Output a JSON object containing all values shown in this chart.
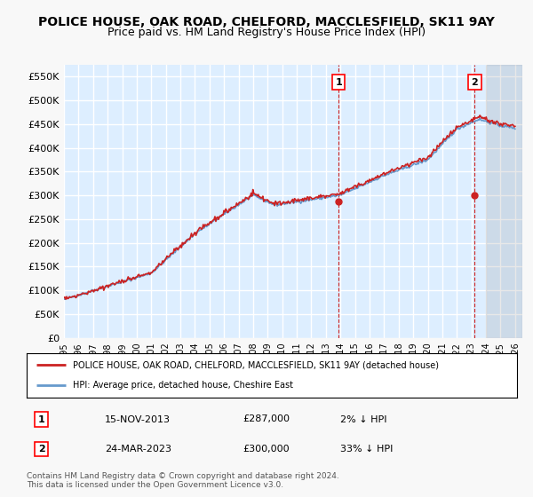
{
  "title": "POLICE HOUSE, OAK ROAD, CHELFORD, MACCLESFIELD, SK11 9AY",
  "subtitle": "Price paid vs. HM Land Registry's House Price Index (HPI)",
  "ylabel_ticks": [
    "£0",
    "£50K",
    "£100K",
    "£150K",
    "£200K",
    "£250K",
    "£300K",
    "£350K",
    "£400K",
    "£450K",
    "£500K",
    "£550K"
  ],
  "ytick_values": [
    0,
    50000,
    100000,
    150000,
    200000,
    250000,
    300000,
    350000,
    400000,
    450000,
    500000,
    550000
  ],
  "ylim": [
    0,
    575000
  ],
  "xlim_start": 1995.5,
  "xlim_end": 2026.5,
  "xtick_labels": [
    "1995",
    "1996",
    "1997",
    "1998",
    "1999",
    "2000",
    "2001",
    "2002",
    "2003",
    "2004",
    "2005",
    "2006",
    "2007",
    "2008",
    "2009",
    "2010",
    "2011",
    "2012",
    "2013",
    "2014",
    "2015",
    "2016",
    "2017",
    "2018",
    "2019",
    "2020",
    "2021",
    "2022",
    "2023",
    "2024",
    "2025",
    "2026"
  ],
  "xtick_values": [
    1995,
    1996,
    1997,
    1998,
    1999,
    2000,
    2001,
    2002,
    2003,
    2004,
    2005,
    2006,
    2007,
    2008,
    2009,
    2010,
    2011,
    2012,
    2013,
    2014,
    2015,
    2016,
    2017,
    2018,
    2019,
    2020,
    2021,
    2022,
    2023,
    2024,
    2025,
    2026
  ],
  "hpi_color": "#6699cc",
  "price_color": "#cc2222",
  "plot_bg_color": "#ddeeff",
  "grid_color": "#ffffff",
  "sale1_date": 2013.88,
  "sale1_price": 287000,
  "sale2_date": 2023.23,
  "sale2_price": 300000,
  "legend_label1": "POLICE HOUSE, OAK ROAD, CHELFORD, MACCLESFIELD, SK11 9AY (detached house)",
  "legend_label2": "HPI: Average price, detached house, Cheshire East",
  "table_row1": [
    "1",
    "15-NOV-2013",
    "£287,000",
    "2% ↓ HPI"
  ],
  "table_row2": [
    "2",
    "24-MAR-2023",
    "£300,000",
    "33% ↓ HPI"
  ],
  "footer": "Contains HM Land Registry data © Crown copyright and database right 2024.\nThis data is licensed under the Open Government Licence v3.0.",
  "title_fontsize": 10,
  "subtitle_fontsize": 9
}
